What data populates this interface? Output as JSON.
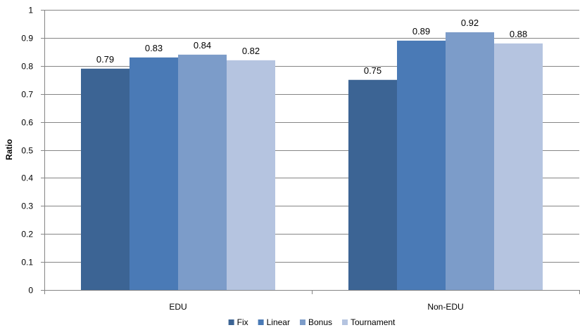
{
  "chart_data": {
    "type": "bar",
    "categories": [
      "EDU",
      "Non-EDU"
    ],
    "series": [
      {
        "name": "Fix",
        "values": [
          0.79,
          0.75
        ],
        "color": "#3c6494"
      },
      {
        "name": "Linear",
        "values": [
          0.83,
          0.89
        ],
        "color": "#4a7ab6"
      },
      {
        "name": "Bonus",
        "values": [
          0.84,
          0.92
        ],
        "color": "#7c9cc9"
      },
      {
        "name": "Tournament",
        "values": [
          0.82,
          0.88
        ],
        "color": "#b5c4e0"
      }
    ],
    "data_labels": [
      [
        "0.79",
        "0.75"
      ],
      [
        "0.83",
        "0.89"
      ],
      [
        "0.84",
        "0.92"
      ],
      [
        "0.82",
        "0.88"
      ]
    ],
    "yticks": [
      "0",
      "0.1",
      "0.2",
      "0.3",
      "0.4",
      "0.5",
      "0.6",
      "0.7",
      "0.8",
      "0.9",
      "1"
    ],
    "ylabel": "Ratio",
    "xlabel": "",
    "title": "",
    "ylim": [
      0,
      1
    ],
    "grid": true,
    "legend": "bottom-center",
    "gridline_color": "#858585"
  }
}
